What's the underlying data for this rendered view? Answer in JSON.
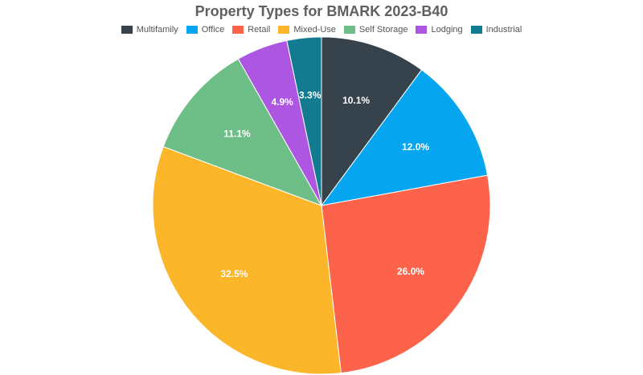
{
  "chart_data": {
    "type": "pie",
    "title": "Property Types for BMARK 2023-B40",
    "legend_position": "top",
    "slices": [
      {
        "name": "Industrial",
        "value": 3.3,
        "label": "3.3%",
        "color": "#127b8f"
      },
      {
        "name": "Multifamily",
        "value": 10.1,
        "label": "10.1%",
        "color": "#36424c"
      },
      {
        "name": "Office",
        "value": 12.0,
        "label": "12.0%",
        "color": "#05a6ef"
      },
      {
        "name": "Retail",
        "value": 26.0,
        "label": "26.0%",
        "color": "#fd634a"
      },
      {
        "name": "Mixed-Use",
        "value": 32.5,
        "label": "32.5%",
        "color": "#fbb62a"
      },
      {
        "name": "Self Storage",
        "value": 11.1,
        "label": "11.1%",
        "color": "#6ebf87"
      },
      {
        "name": "Lodging",
        "value": 4.9,
        "label": "4.9%",
        "color": "#ac56e1"
      }
    ],
    "legend": [
      {
        "name": "Multifamily",
        "color": "#36424c"
      },
      {
        "name": "Office",
        "color": "#05a6ef"
      },
      {
        "name": "Retail",
        "color": "#fd634a"
      },
      {
        "name": "Mixed-Use",
        "color": "#fbb62a"
      },
      {
        "name": "Self Storage",
        "color": "#6ebf87"
      },
      {
        "name": "Lodging",
        "color": "#ac56e1"
      },
      {
        "name": "Industrial",
        "color": "#127b8f"
      }
    ]
  }
}
